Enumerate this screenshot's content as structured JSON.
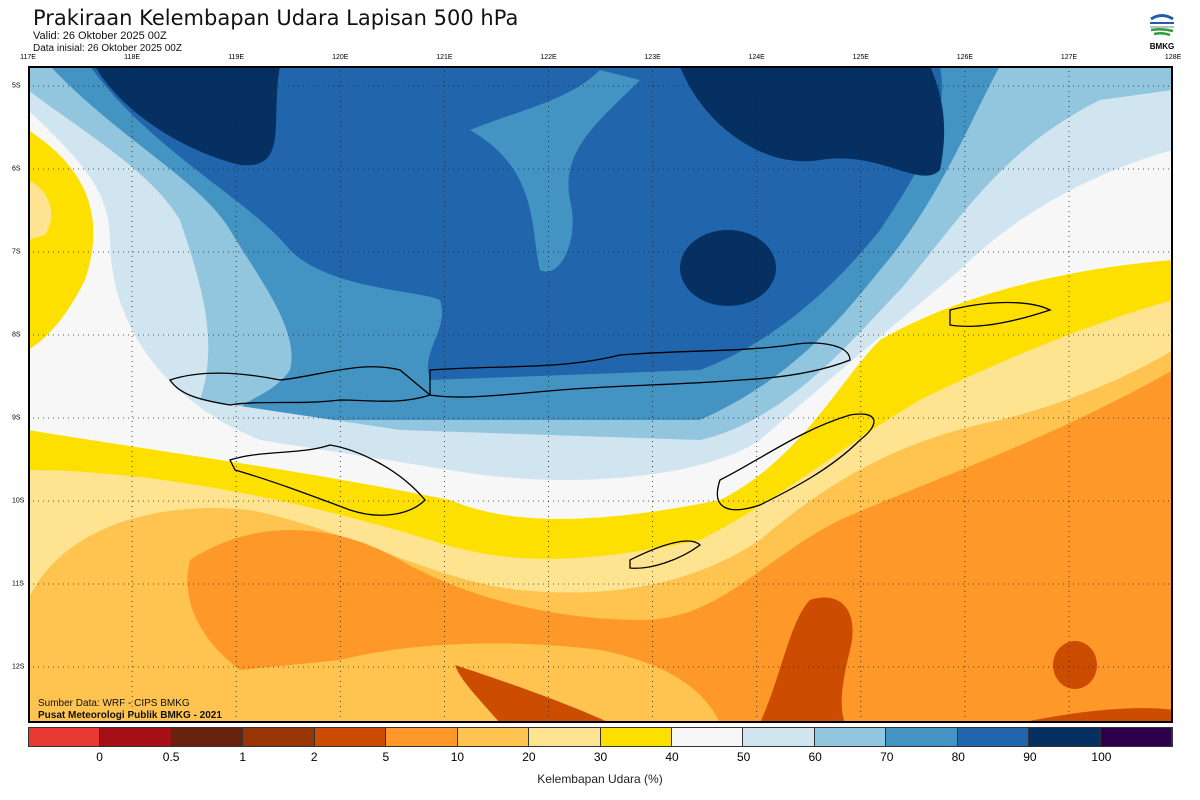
{
  "header": {
    "title": "Prakiraan Kelembapan Udara Lapisan 500 hPa",
    "valid": "Valid: 26 Oktober 2025 00Z",
    "initial": "Data inisial: 26 Oktober 2025 00Z",
    "logo_text": "BMKG"
  },
  "map": {
    "lon_labels": [
      "117E",
      "118E",
      "119E",
      "120E",
      "121E",
      "122E",
      "123E",
      "124E",
      "125E",
      "126E",
      "127E",
      "128E"
    ],
    "lat_labels": [
      "5S",
      "6S",
      "7S",
      "8S",
      "9S",
      "10S",
      "11S",
      "12S"
    ],
    "source": "Sumber Data: WRF - CIPS BMKG",
    "credit": "Pusat Meteorologi Publik BMKG - 2021"
  },
  "colorbar": {
    "colors": [
      "#e83a30",
      "#a50f15",
      "#67230d",
      "#993404",
      "#cc4c02",
      "#fe9929",
      "#fec44f",
      "#fee391",
      "#fee000",
      "#f7f7f7",
      "#d1e5f0",
      "#92c5de",
      "#4393c3",
      "#2166ac",
      "#053061",
      "#2d004b"
    ],
    "ticks": [
      "0",
      "0.5",
      "1",
      "2",
      "5",
      "10",
      "20",
      "30",
      "40",
      "50",
      "60",
      "70",
      "80",
      "90",
      "100"
    ],
    "label": "Kelembapan Udara (%)"
  }
}
